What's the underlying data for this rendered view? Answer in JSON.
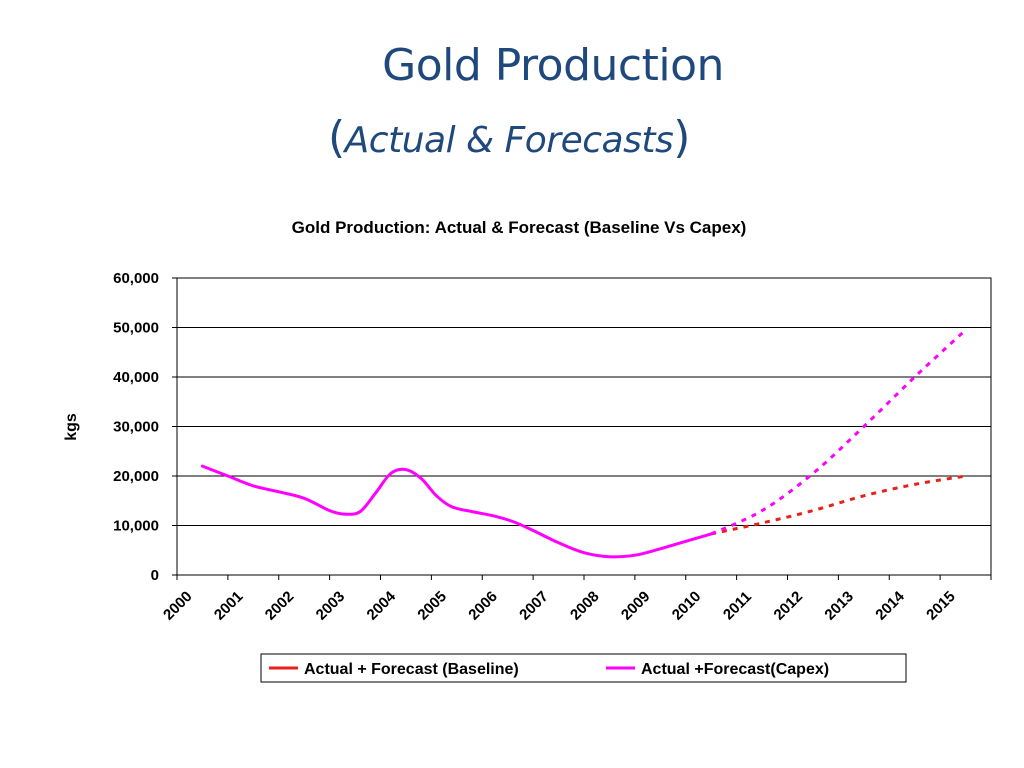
{
  "slide": {
    "title_line1": "Gold Production",
    "title_open_paren": "(",
    "title_line2": "Actual & Forecasts",
    "title_close_paren": ")"
  },
  "colors": {
    "title": "#1f497d",
    "baseline": "#e8201a",
    "capex": "#ff00ff",
    "grid": "#000000"
  },
  "chart_data": {
    "type": "line",
    "title": "Gold Production: Actual & Forecast (Baseline Vs Capex)",
    "xlabel": "",
    "ylabel": "kgs",
    "x_categories": [
      "2000",
      "2001",
      "2002",
      "2003",
      "2004",
      "2005",
      "2006",
      "2007",
      "2008",
      "2009",
      "2010",
      "2011",
      "2012",
      "2013",
      "2014",
      "2015"
    ],
    "ylim": [
      0,
      60000
    ],
    "yticks": [
      0,
      10000,
      20000,
      30000,
      40000,
      50000,
      60000
    ],
    "ytick_labels": [
      "0",
      "10,000",
      "20,000",
      "30,000",
      "40,000",
      "50,000",
      "60,000"
    ],
    "grid": "horizontal",
    "legend_position": "bottom",
    "actual": {
      "x": [
        2000.5,
        2001.0,
        2001.5,
        2002.0,
        2002.5,
        2003.0,
        2003.3,
        2003.6,
        2003.9,
        2004.2,
        2004.5,
        2004.8,
        2005.1,
        2005.4,
        2005.8,
        2006.2,
        2006.6,
        2007.0,
        2007.5,
        2008.0,
        2008.5,
        2009.0,
        2009.5,
        2010.0,
        2010.5
      ],
      "y": [
        22000,
        20000,
        18000,
        16800,
        15500,
        13000,
        12300,
        12800,
        16500,
        20500,
        21300,
        19500,
        16000,
        13800,
        12800,
        12000,
        10800,
        9000,
        6500,
        4500,
        3700,
        4000,
        5300,
        6800,
        8300
      ]
    },
    "series": [
      {
        "name": "Actual + Forecast (Baseline)",
        "color": "#e8201a",
        "style": "dashed",
        "x": [
          2010.5,
          2011.5,
          2012.5,
          2013.5,
          2014.5,
          2015.5
        ],
        "y": [
          8300,
          10500,
          13000,
          16000,
          18300,
          20000
        ]
      },
      {
        "name": "Actual +Forecast(Capex)",
        "color": "#ff00ff",
        "style": "dashed",
        "x": [
          2010.5,
          2011.5,
          2012.5,
          2013.5,
          2014.5,
          2015.5
        ],
        "y": [
          8300,
          13000,
          20500,
          30000,
          40000,
          49500
        ]
      }
    ]
  }
}
